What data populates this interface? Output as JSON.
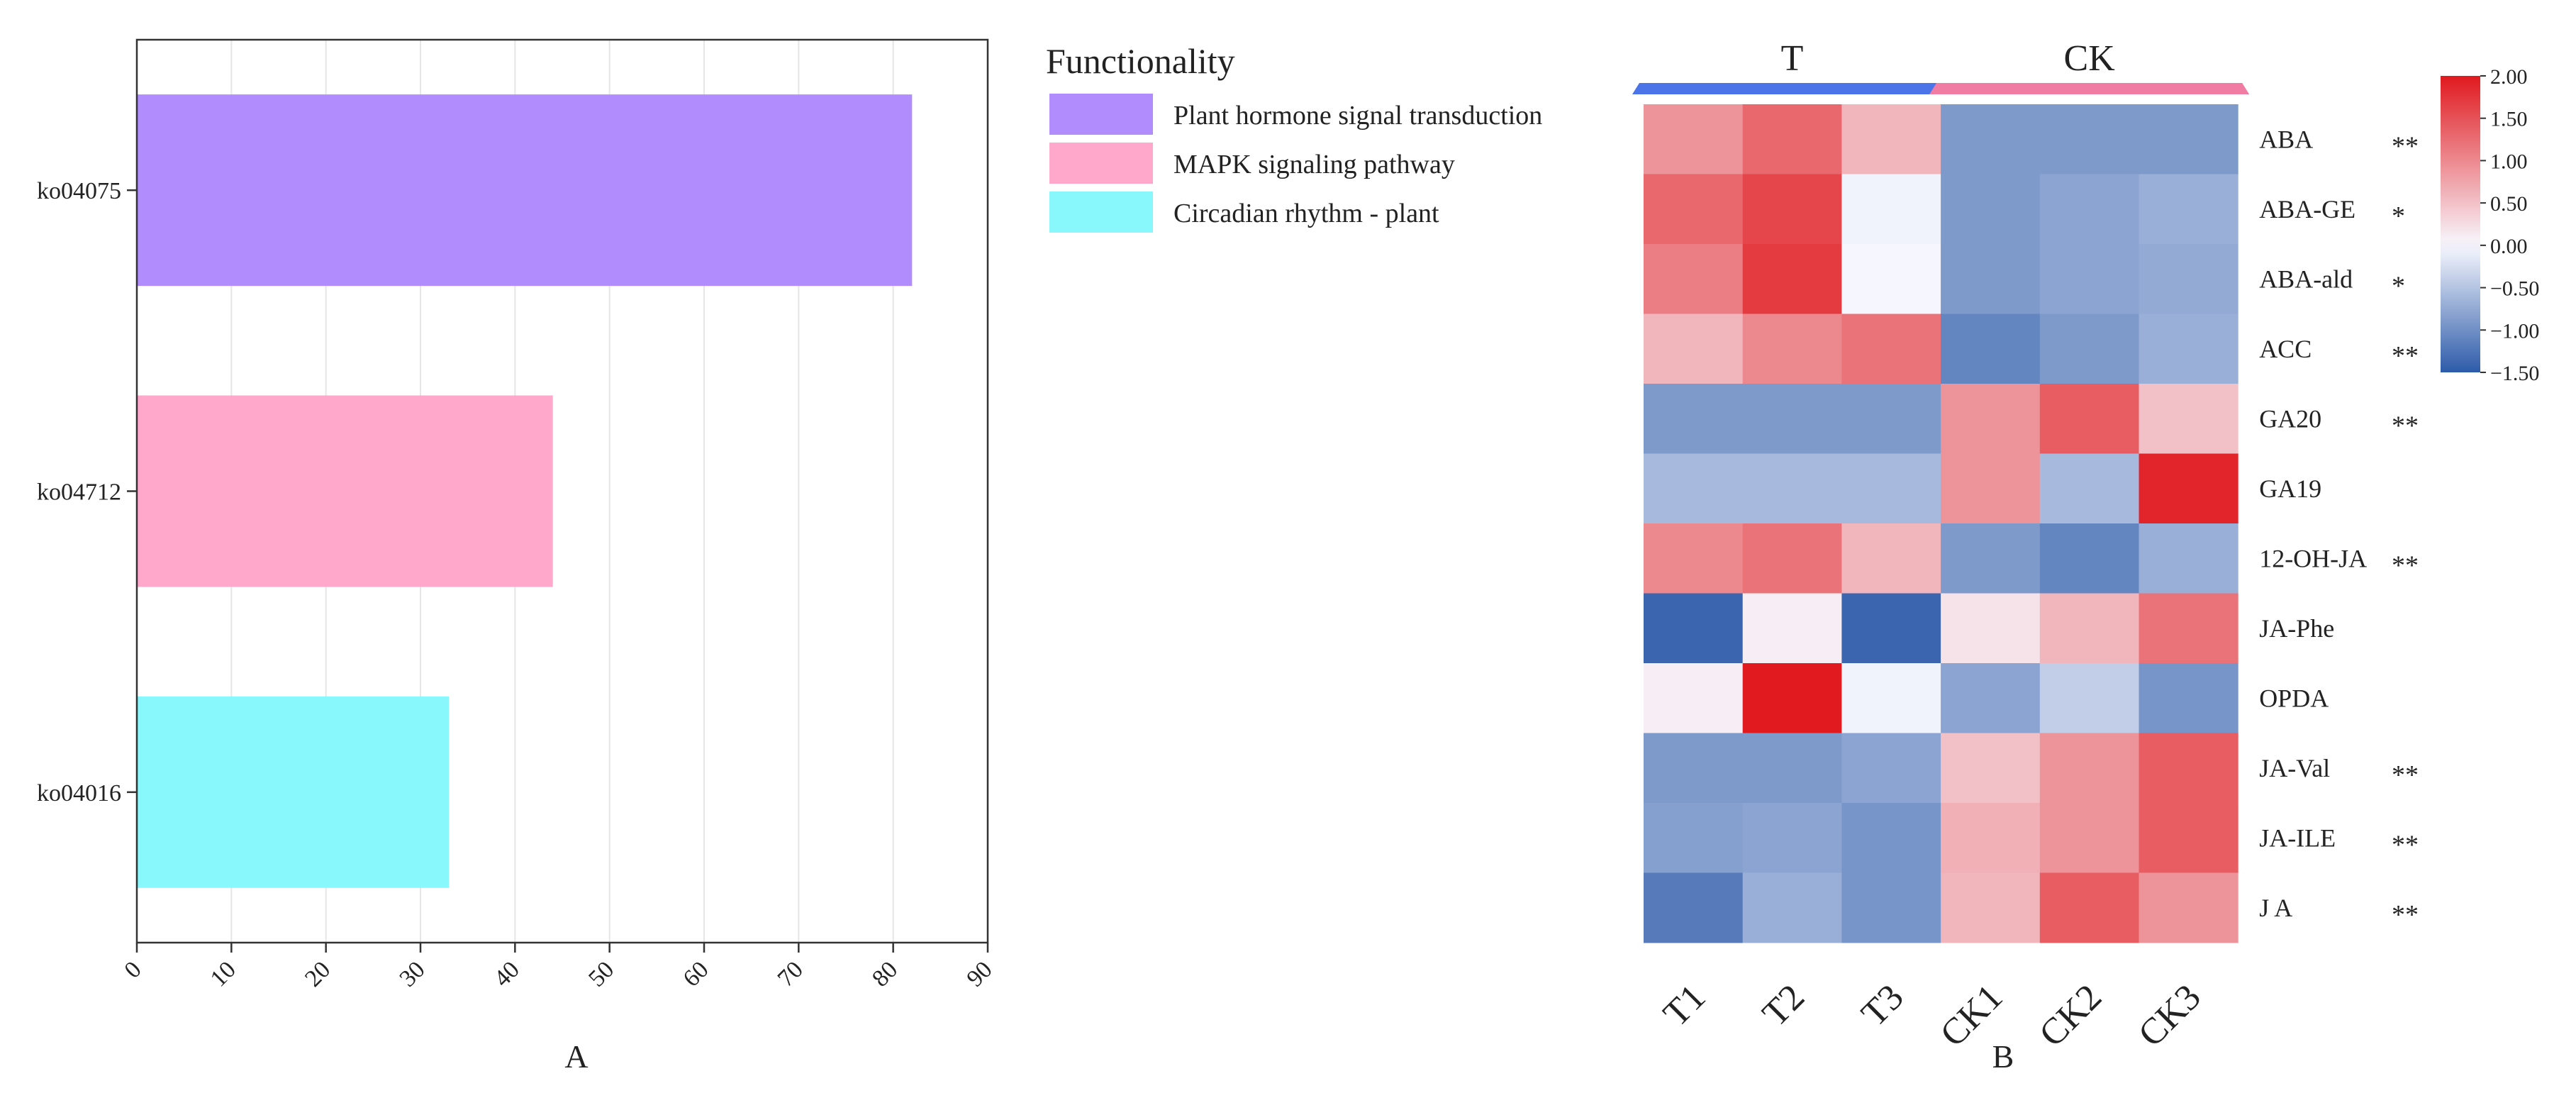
{
  "chart_data": [
    {
      "type": "bar",
      "orientation": "horizontal",
      "panel_label": "A",
      "categories": [
        "ko04075",
        "ko04712",
        "ko04016"
      ],
      "values": [
        82,
        44,
        33
      ],
      "xlim": [
        0,
        90
      ],
      "xticks": [
        0,
        10,
        20,
        30,
        40,
        50,
        60,
        70,
        80,
        90
      ],
      "grid": true,
      "colors": [
        "#b08cfc",
        "#ffa8cc",
        "#88f8fd"
      ],
      "legend": {
        "title": "Functionality",
        "placement": "right",
        "entries": [
          "Plant hormone signal transduction",
          "MAPK signaling pathway",
          "Circadian rhythm - plant"
        ]
      }
    },
    {
      "type": "heatmap",
      "panel_label": "B",
      "groups": [
        {
          "name": "T",
          "color": "#4a74e8"
        },
        {
          "name": "CK",
          "color": "#f07ca4"
        }
      ],
      "columns": [
        "T1",
        "T2",
        "T3",
        "CK1",
        "CK2",
        "CK3"
      ],
      "rows": [
        "ABA",
        "ABA-GE",
        "ABA-ald",
        "ACC",
        "GA20",
        "GA19",
        "12-OH-JA",
        "JA-Phe",
        "OPDA",
        "JA-Val",
        "JA-ILE",
        "J A"
      ],
      "significance": [
        "**",
        "*",
        "*",
        "**",
        "**",
        "",
        "**",
        "",
        "",
        "**",
        "**",
        "**"
      ],
      "values": [
        [
          0.9,
          1.3,
          0.6,
          -0.9,
          -0.9,
          -0.9
        ],
        [
          1.3,
          1.6,
          -0.05,
          -0.9,
          -0.8,
          -0.7
        ],
        [
          1.1,
          1.7,
          -0.02,
          -0.9,
          -0.8,
          -0.75
        ],
        [
          0.6,
          1.0,
          1.2,
          -1.1,
          -0.9,
          -0.7
        ],
        [
          -0.9,
          -0.9,
          -0.9,
          0.9,
          1.4,
          0.5
        ],
        [
          -0.6,
          -0.6,
          -0.6,
          0.9,
          -0.6,
          1.9
        ],
        [
          1.0,
          1.2,
          0.6,
          -0.9,
          -1.1,
          -0.7
        ],
        [
          -1.4,
          0.1,
          -1.4,
          0.2,
          0.6,
          1.2
        ],
        [
          0.1,
          2.0,
          -0.05,
          -0.8,
          -0.4,
          -0.95
        ],
        [
          -0.9,
          -0.9,
          -0.8,
          0.5,
          0.9,
          1.4
        ],
        [
          -0.85,
          -0.8,
          -0.95,
          0.65,
          0.9,
          1.4
        ],
        [
          -1.2,
          -0.7,
          -0.95,
          0.6,
          1.4,
          0.9
        ]
      ],
      "colorbar": {
        "min": -1.5,
        "max": 2.0,
        "ticks": [
          "2.00",
          "1.50",
          "1.00",
          "0.50",
          "0.00",
          "−0.50",
          "−1.00",
          "−1.50"
        ],
        "tick_values": [
          2.0,
          1.5,
          1.0,
          0.5,
          0.0,
          -0.5,
          -1.0,
          -1.5
        ],
        "colors": {
          "low": "#2d5ba9",
          "mid": "#f8f8ff",
          "high": "#e01a1f"
        }
      }
    }
  ]
}
